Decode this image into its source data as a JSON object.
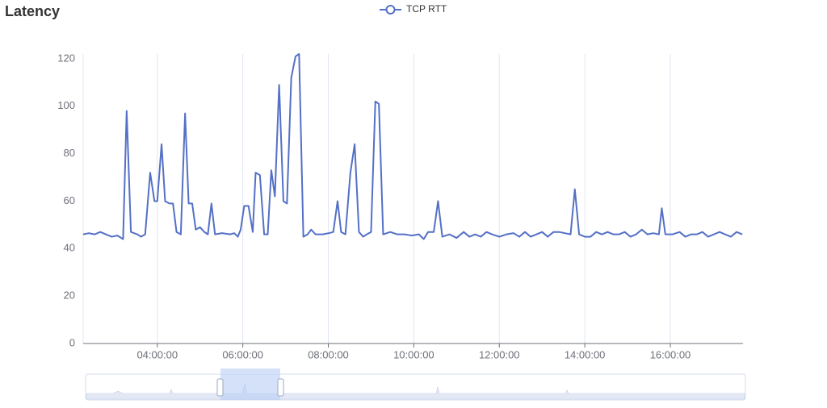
{
  "chart_data": {
    "type": "line",
    "title": "Latency",
    "x": [
      "02:16:00",
      "02:24:00",
      "02:32:00",
      "02:40:00",
      "02:48:00",
      "02:56:00",
      "03:04:00",
      "03:12:00",
      "03:17:00",
      "03:23:00",
      "03:32:00",
      "03:37:00",
      "03:43:00",
      "03:50:00",
      "03:56:00",
      "04:00:00",
      "04:06:00",
      "04:11:00",
      "04:17:00",
      "04:22:00",
      "04:27:00",
      "04:33:00",
      "04:39:00",
      "04:44:00",
      "04:49:00",
      "04:54:00",
      "05:00:00",
      "05:06:00",
      "05:11:00",
      "05:16:00",
      "05:21:00",
      "05:31:00",
      "05:42:00",
      "05:48:00",
      "05:53:00",
      "05:57:00",
      "06:02:00",
      "06:08:00",
      "06:14:00",
      "06:18:00",
      "06:24:00",
      "06:30:00",
      "06:35:00",
      "06:40:00",
      "06:45:00",
      "06:51:00",
      "06:57:00",
      "07:02:00",
      "07:08:00",
      "07:14:00",
      "07:19:00",
      "07:25:00",
      "07:31:00",
      "07:36:00",
      "07:42:00",
      "07:52:00",
      "08:01:00",
      "08:07:00",
      "08:13:00",
      "08:18:00",
      "08:24:00",
      "08:31:00",
      "08:37:00",
      "08:43:00",
      "08:49:00",
      "08:54:00",
      "09:00:00",
      "09:06:00",
      "09:11:00",
      "09:17:00",
      "09:27:00",
      "09:37:00",
      "09:47:00",
      "09:57:00",
      "10:07:00",
      "10:14:00",
      "10:20:00",
      "10:28:00",
      "10:34:00",
      "10:40:00",
      "10:50:00",
      "11:00:00",
      "11:10:00",
      "11:18:00",
      "11:26:00",
      "11:34:00",
      "11:42:00",
      "11:50:00",
      "12:00:00",
      "12:10:00",
      "12:20:00",
      "12:28:00",
      "12:36:00",
      "12:44:00",
      "12:52:00",
      "13:00:00",
      "13:08:00",
      "13:16:00",
      "13:24:00",
      "13:32:00",
      "13:40:00",
      "13:46:00",
      "13:52:00",
      "14:00:00",
      "14:08:00",
      "14:16:00",
      "14:24:00",
      "14:32:00",
      "14:40:00",
      "14:48:00",
      "14:56:00",
      "15:04:00",
      "15:12:00",
      "15:20:00",
      "15:28:00",
      "15:36:00",
      "15:44:00",
      "15:48:00",
      "15:53:00",
      "16:03:00",
      "16:13:00",
      "16:21:00",
      "16:29:00",
      "16:37:00",
      "16:45:00",
      "16:53:00",
      "17:01:00",
      "17:09:00",
      "17:17:00",
      "17:25:00",
      "17:33:00",
      "17:41:00"
    ],
    "series": [
      {
        "name": "TCP RTT",
        "color": "#5470c6",
        "values": [
          46,
          46.5,
          46,
          47,
          46,
          45,
          45.5,
          44,
          98,
          47,
          46,
          45,
          46,
          72,
          60,
          60,
          84,
          60,
          59,
          59,
          47,
          46,
          97,
          59,
          59,
          48,
          49,
          47,
          46,
          59,
          46,
          46.5,
          46,
          46.5,
          45,
          48,
          58,
          58,
          47,
          72,
          71,
          46,
          46,
          73,
          62,
          109,
          60,
          59,
          112,
          121,
          122,
          45,
          46,
          48,
          46,
          46,
          46.5,
          47,
          60,
          47,
          46,
          72,
          84,
          47,
          45,
          46,
          47,
          102,
          101,
          46,
          47,
          46,
          46,
          45.5,
          46,
          44,
          47,
          47,
          60,
          45,
          46,
          44.5,
          47,
          45,
          46,
          45,
          47,
          46,
          45,
          46,
          46.5,
          45,
          47,
          45,
          46,
          47,
          45,
          47,
          47,
          46.5,
          46,
          65,
          46,
          45,
          45,
          47,
          46,
          47,
          46,
          46,
          47,
          45,
          46,
          48,
          46,
          46.5,
          46,
          57,
          46,
          46,
          47,
          45,
          46,
          46,
          47,
          45,
          46,
          47,
          46,
          45,
          47,
          46
        ]
      }
    ],
    "xlim": [
      "02:16:00",
      "17:42:00"
    ],
    "xticks": [
      "04:00:00",
      "06:00:00",
      "08:00:00",
      "10:00:00",
      "12:00:00",
      "14:00:00",
      "16:00:00"
    ],
    "ylim": [
      0,
      122
    ],
    "yticks": [
      0,
      20,
      40,
      60,
      80,
      100,
      120
    ],
    "grid": "x"
  }
}
